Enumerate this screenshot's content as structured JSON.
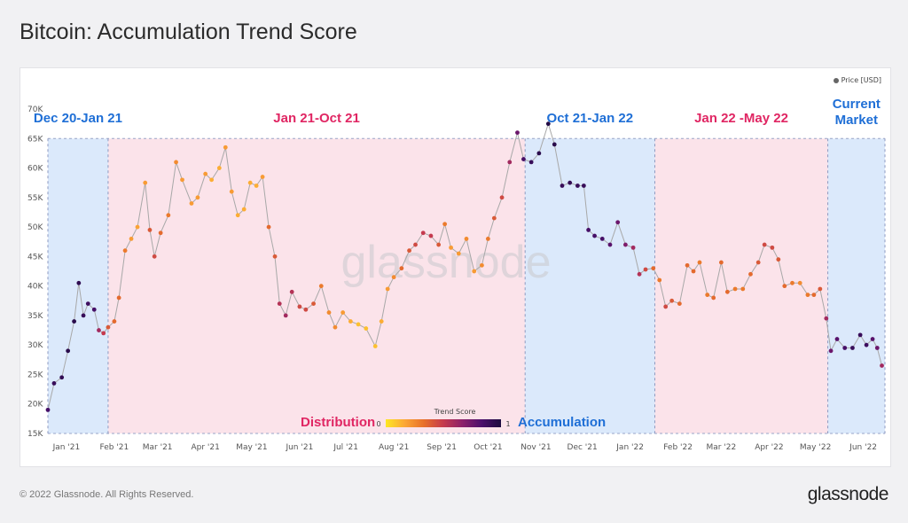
{
  "page": {
    "title": "Bitcoin: Accumulation Trend Score",
    "copyright": "© 2022 Glassnode. All Rights Reserved.",
    "logo": "glassnode",
    "watermark": "glassnode"
  },
  "legend": {
    "price_label": "Price [USD]",
    "trend_title": "Trend Score",
    "trend_min": "0",
    "trend_max": "1"
  },
  "colors": {
    "accumulation_band": "#dbe9fb",
    "distribution_band": "#fbe3ea",
    "blue_text": "#1f6fd6",
    "pink_text": "#e02663",
    "line": "#a8a8a8",
    "score_gradient": [
      "#fde725",
      "#fca636",
      "#e76f2a",
      "#c53a4e",
      "#8b1f6a",
      "#4b0f6b",
      "#1c0b3f"
    ]
  },
  "chart_data": {
    "type": "scatter",
    "title": "Bitcoin: Accumulation Trend Score",
    "ylim": [
      15000,
      70000
    ],
    "yticks": [
      "15K",
      "20K",
      "25K",
      "30K",
      "35K",
      "40K",
      "45K",
      "50K",
      "55K",
      "60K",
      "65K",
      "70K"
    ],
    "xticks": [
      "Jan '21",
      "Feb '21",
      "Mar '21",
      "Apr '21",
      "May '21",
      "Jun '21",
      "Jul '21",
      "Aug '21",
      "Sep '21",
      "Oct '21",
      "Nov '21",
      "Dec '21",
      "Jan '22",
      "Feb '22",
      "Mar '22",
      "Apr '22",
      "May '22",
      "Jun '22"
    ],
    "x_range": [
      "2020-12-20",
      "2022-06-15"
    ],
    "series_price": [
      [
        "2020-12-20",
        19000,
        0.85
      ],
      [
        "2020-12-24",
        23500,
        0.9
      ],
      [
        "2020-12-29",
        24500,
        0.92
      ],
      [
        "2021-01-02",
        29000,
        0.95
      ],
      [
        "2021-01-06",
        34000,
        0.95
      ],
      [
        "2021-01-09",
        40500,
        0.93
      ],
      [
        "2021-01-12",
        35000,
        0.9
      ],
      [
        "2021-01-15",
        37000,
        0.88
      ],
      [
        "2021-01-19",
        36000,
        0.85
      ],
      [
        "2021-01-22",
        32500,
        0.6
      ],
      [
        "2021-01-25",
        32000,
        0.5
      ],
      [
        "2021-01-28",
        33000,
        0.4
      ],
      [
        "2021-02-01",
        34000,
        0.35
      ],
      [
        "2021-02-04",
        38000,
        0.35
      ],
      [
        "2021-02-08",
        46000,
        0.3
      ],
      [
        "2021-02-12",
        48000,
        0.2
      ],
      [
        "2021-02-16",
        50000,
        0.18
      ],
      [
        "2021-02-21",
        57500,
        0.2
      ],
      [
        "2021-02-24",
        49500,
        0.4
      ],
      [
        "2021-02-27",
        45000,
        0.45
      ],
      [
        "2021-03-03",
        49000,
        0.35
      ],
      [
        "2021-03-08",
        52000,
        0.3
      ],
      [
        "2021-03-13",
        61000,
        0.25
      ],
      [
        "2021-03-17",
        58000,
        0.2
      ],
      [
        "2021-03-23",
        54000,
        0.2
      ],
      [
        "2021-03-27",
        55000,
        0.2
      ],
      [
        "2021-04-01",
        59000,
        0.2
      ],
      [
        "2021-04-05",
        58000,
        0.15
      ],
      [
        "2021-04-10",
        60000,
        0.15
      ],
      [
        "2021-04-14",
        63500,
        0.2
      ],
      [
        "2021-04-18",
        56000,
        0.2
      ],
      [
        "2021-04-22",
        52000,
        0.15
      ],
      [
        "2021-04-26",
        53000,
        0.15
      ],
      [
        "2021-04-30",
        57500,
        0.15
      ],
      [
        "2021-05-04",
        57000,
        0.15
      ],
      [
        "2021-05-08",
        58500,
        0.2
      ],
      [
        "2021-05-12",
        50000,
        0.35
      ],
      [
        "2021-05-16",
        45000,
        0.4
      ],
      [
        "2021-05-19",
        37000,
        0.55
      ],
      [
        "2021-05-23",
        35000,
        0.6
      ],
      [
        "2021-05-27",
        39000,
        0.55
      ],
      [
        "2021-06-01",
        36500,
        0.45
      ],
      [
        "2021-06-05",
        36000,
        0.45
      ],
      [
        "2021-06-10",
        37000,
        0.4
      ],
      [
        "2021-06-15",
        40000,
        0.3
      ],
      [
        "2021-06-20",
        35500,
        0.25
      ],
      [
        "2021-06-24",
        33000,
        0.25
      ],
      [
        "2021-06-29",
        35500,
        0.2
      ],
      [
        "2021-07-04",
        34000,
        0.15
      ],
      [
        "2021-07-09",
        33500,
        0.1
      ],
      [
        "2021-07-14",
        32800,
        0.1
      ],
      [
        "2021-07-20",
        29800,
        0.1
      ],
      [
        "2021-07-24",
        34000,
        0.15
      ],
      [
        "2021-07-28",
        39500,
        0.2
      ],
      [
        "2021-08-01",
        41500,
        0.25
      ],
      [
        "2021-08-06",
        43000,
        0.35
      ],
      [
        "2021-08-11",
        46000,
        0.4
      ],
      [
        "2021-08-15",
        47000,
        0.45
      ],
      [
        "2021-08-20",
        49000,
        0.5
      ],
      [
        "2021-08-25",
        48500,
        0.5
      ],
      [
        "2021-08-30",
        47000,
        0.4
      ],
      [
        "2021-09-03",
        50500,
        0.3
      ],
      [
        "2021-09-07",
        46500,
        0.2
      ],
      [
        "2021-09-12",
        45500,
        0.2
      ],
      [
        "2021-09-17",
        48000,
        0.25
      ],
      [
        "2021-09-22",
        42500,
        0.2
      ],
      [
        "2021-09-27",
        43500,
        0.25
      ],
      [
        "2021-10-01",
        48000,
        0.3
      ],
      [
        "2021-10-05",
        51500,
        0.4
      ],
      [
        "2021-10-10",
        55000,
        0.45
      ],
      [
        "2021-10-15",
        61000,
        0.6
      ],
      [
        "2021-10-20",
        66000,
        0.75
      ],
      [
        "2021-10-24",
        61500,
        0.85
      ],
      [
        "2021-10-29",
        61000,
        0.9
      ],
      [
        "2021-11-03",
        62500,
        0.95
      ],
      [
        "2021-11-09",
        67500,
        0.98
      ],
      [
        "2021-11-13",
        64000,
        0.95
      ],
      [
        "2021-11-18",
        57000,
        0.9
      ],
      [
        "2021-11-23",
        57500,
        0.92
      ],
      [
        "2021-11-28",
        57000,
        0.9
      ],
      [
        "2021-12-02",
        57000,
        0.9
      ],
      [
        "2021-12-05",
        49500,
        0.85
      ],
      [
        "2021-12-09",
        48500,
        0.85
      ],
      [
        "2021-12-14",
        48000,
        0.85
      ],
      [
        "2021-12-19",
        47000,
        0.8
      ],
      [
        "2021-12-24",
        50800,
        0.75
      ],
      [
        "2021-12-29",
        47000,
        0.7
      ],
      [
        "2022-01-03",
        46500,
        0.6
      ],
      [
        "2022-01-07",
        42000,
        0.55
      ],
      [
        "2022-01-11",
        42800,
        0.45
      ],
      [
        "2022-01-16",
        43000,
        0.35
      ],
      [
        "2022-01-20",
        41000,
        0.3
      ],
      [
        "2022-01-24",
        36500,
        0.45
      ],
      [
        "2022-01-28",
        37500,
        0.4
      ],
      [
        "2022-02-02",
        37000,
        0.35
      ],
      [
        "2022-02-07",
        43500,
        0.35
      ],
      [
        "2022-02-11",
        42500,
        0.35
      ],
      [
        "2022-02-15",
        44000,
        0.3
      ],
      [
        "2022-02-20",
        38500,
        0.3
      ],
      [
        "2022-02-24",
        38000,
        0.35
      ],
      [
        "2022-03-01",
        44000,
        0.35
      ],
      [
        "2022-03-05",
        39000,
        0.35
      ],
      [
        "2022-03-10",
        39500,
        0.3
      ],
      [
        "2022-03-15",
        39500,
        0.3
      ],
      [
        "2022-03-20",
        42000,
        0.35
      ],
      [
        "2022-03-25",
        44000,
        0.4
      ],
      [
        "2022-03-29",
        47000,
        0.45
      ],
      [
        "2022-04-03",
        46500,
        0.45
      ],
      [
        "2022-04-07",
        44500,
        0.4
      ],
      [
        "2022-04-11",
        40000,
        0.35
      ],
      [
        "2022-04-16",
        40500,
        0.3
      ],
      [
        "2022-04-21",
        40500,
        0.25
      ],
      [
        "2022-04-26",
        38500,
        0.3
      ],
      [
        "2022-04-30",
        38500,
        0.35
      ],
      [
        "2022-05-04",
        39500,
        0.4
      ],
      [
        "2022-05-08",
        34500,
        0.6
      ],
      [
        "2022-05-11",
        29000,
        0.75
      ],
      [
        "2022-05-15",
        31000,
        0.8
      ],
      [
        "2022-05-20",
        29500,
        0.85
      ],
      [
        "2022-05-25",
        29500,
        0.9
      ],
      [
        "2022-05-30",
        31700,
        0.9
      ],
      [
        "2022-06-03",
        30000,
        0.88
      ],
      [
        "2022-06-07",
        31000,
        0.8
      ],
      [
        "2022-06-10",
        29500,
        0.75
      ],
      [
        "2022-06-13",
        26500,
        0.6
      ]
    ],
    "bands": [
      {
        "start": "2020-12-20",
        "end": "2021-01-28",
        "type": "accumulation",
        "label": "Dec 20-Jan 21"
      },
      {
        "start": "2021-01-28",
        "end": "2021-10-25",
        "type": "distribution",
        "label": "Jan 21-Oct 21"
      },
      {
        "start": "2021-10-25",
        "end": "2022-01-17",
        "type": "accumulation",
        "label": "Oct 21-Jan 22"
      },
      {
        "start": "2022-01-17",
        "end": "2022-05-09",
        "type": "distribution",
        "label": "Jan 22 -May 22"
      },
      {
        "start": "2022-05-09",
        "end": "2022-06-15",
        "type": "accumulation",
        "label": "Current Market"
      }
    ],
    "annotations": {
      "distribution": "Distribution",
      "accumulation": "Accumulation"
    }
  }
}
